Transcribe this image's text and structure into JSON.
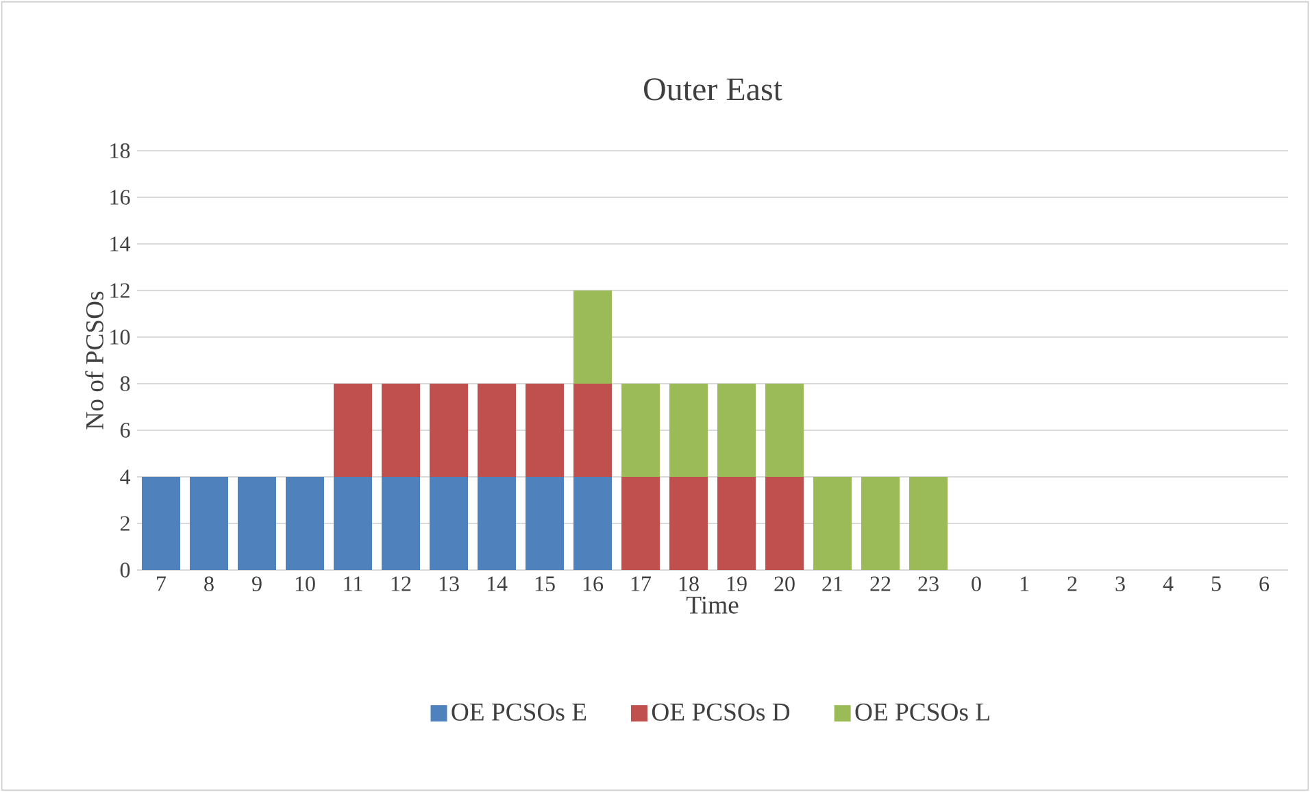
{
  "chart_data": {
    "type": "bar",
    "stacked": true,
    "title": "Outer East",
    "xlabel": "Time",
    "ylabel": "No of PCSOs",
    "categories": [
      "7",
      "8",
      "9",
      "10",
      "11",
      "12",
      "13",
      "14",
      "15",
      "16",
      "17",
      "18",
      "19",
      "20",
      "21",
      "22",
      "23",
      "0",
      "1",
      "2",
      "3",
      "4",
      "5",
      "6"
    ],
    "series": [
      {
        "name": "OE PCSOs E",
        "color": "#4f81bd",
        "values": [
          4,
          4,
          4,
          4,
          4,
          4,
          4,
          4,
          4,
          4,
          0,
          0,
          0,
          0,
          0,
          0,
          0,
          0,
          0,
          0,
          0,
          0,
          0,
          0
        ]
      },
      {
        "name": "OE PCSOs D",
        "color": "#c0504d",
        "values": [
          0,
          0,
          0,
          0,
          4,
          4,
          4,
          4,
          4,
          4,
          4,
          4,
          4,
          4,
          0,
          0,
          0,
          0,
          0,
          0,
          0,
          0,
          0,
          0
        ]
      },
      {
        "name": "OE PCSOs L",
        "color": "#9bbb59",
        "values": [
          0,
          0,
          0,
          0,
          0,
          0,
          0,
          0,
          0,
          4,
          4,
          4,
          4,
          4,
          4,
          4,
          4,
          0,
          0,
          0,
          0,
          0,
          0,
          0
        ]
      }
    ],
    "ylim": [
      0,
      18
    ],
    "yticks": [
      0,
      2,
      4,
      6,
      8,
      10,
      12,
      14,
      16,
      18
    ],
    "grid": "y",
    "legend": "bottom"
  }
}
